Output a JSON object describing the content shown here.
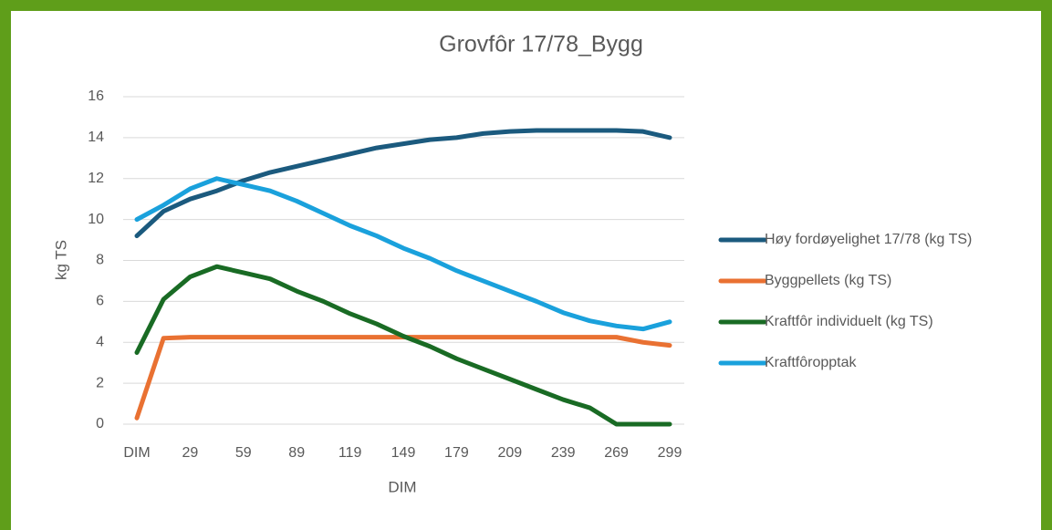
{
  "chart_data": {
    "type": "line",
    "title": "Grovfôr 17/78_Bygg",
    "x_label": "DIM",
    "y_label": "kg TS",
    "categories": [
      "DIM",
      null,
      "29",
      null,
      "59",
      null,
      "89",
      null,
      "119",
      null,
      "149",
      null,
      "179",
      null,
      "209",
      null,
      "239",
      null,
      "269",
      null,
      "299"
    ],
    "ylim": [
      0,
      16
    ],
    "yticks": [
      0,
      2,
      4,
      6,
      8,
      10,
      12,
      14,
      16
    ],
    "grid": true,
    "legend": "right",
    "series": [
      {
        "name": "Høy fordøyelighet 17/78 (kg TS)",
        "color": "#1b5a7e",
        "values": [
          9.2,
          10.4,
          11.0,
          11.4,
          11.9,
          12.3,
          12.6,
          12.9,
          13.2,
          13.5,
          13.7,
          13.9,
          14.0,
          14.2,
          14.3,
          14.35,
          14.35,
          14.35,
          14.35,
          14.3,
          14.0
        ]
      },
      {
        "name": "Byggpellets (kg TS)",
        "color": "#e97132",
        "values": [
          0.3,
          4.2,
          4.25,
          4.25,
          4.25,
          4.25,
          4.25,
          4.25,
          4.25,
          4.25,
          4.25,
          4.25,
          4.25,
          4.25,
          4.25,
          4.25,
          4.25,
          4.25,
          4.25,
          4.0,
          3.85
        ]
      },
      {
        "name": "Kraftfôr individuelt (kg TS)",
        "color": "#196b24",
        "values": [
          3.5,
          6.1,
          7.2,
          7.7,
          7.4,
          7.1,
          6.5,
          6.0,
          5.4,
          4.9,
          4.3,
          3.8,
          3.2,
          2.7,
          2.2,
          1.7,
          1.2,
          0.8,
          0,
          0,
          0
        ]
      },
      {
        "name": "Kraftfôropptak",
        "color": "#1aa1dc",
        "values": [
          10.0,
          10.7,
          11.5,
          12.0,
          11.7,
          11.4,
          10.9,
          10.3,
          9.7,
          9.2,
          8.6,
          8.1,
          7.5,
          7.0,
          6.5,
          6.0,
          5.45,
          5.05,
          4.8,
          4.65,
          5.0
        ]
      }
    ]
  }
}
